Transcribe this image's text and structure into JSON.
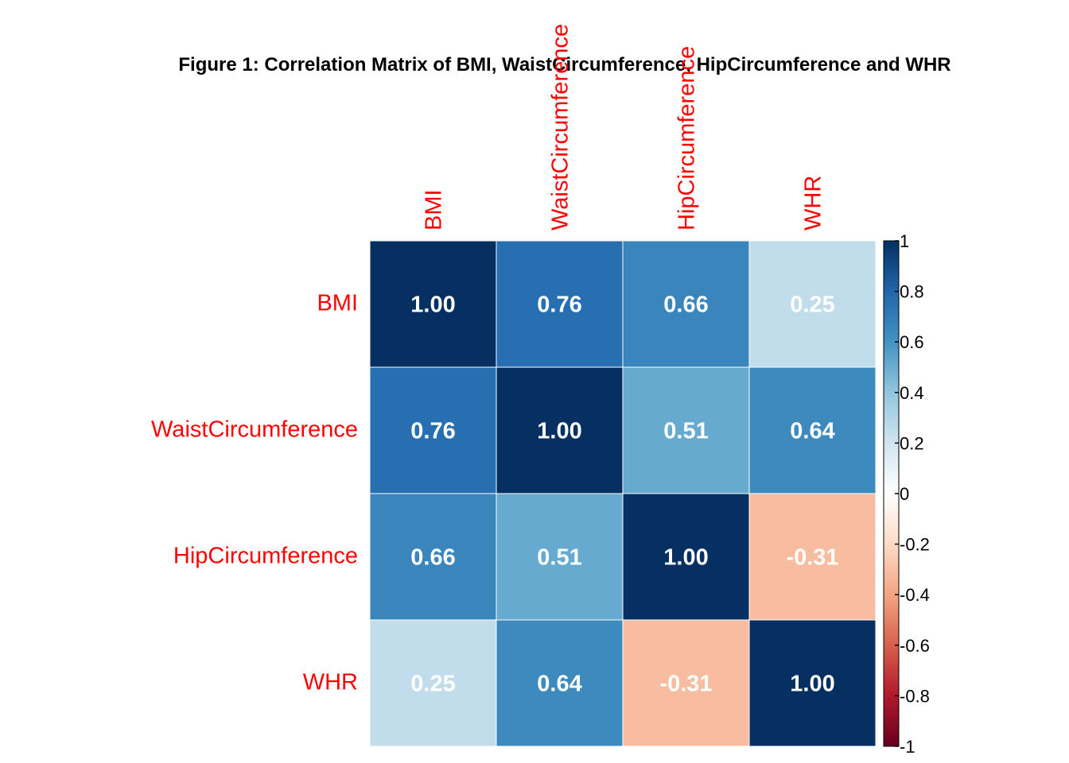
{
  "chart_data": {
    "type": "heatmap",
    "title": "Figure 1: Correlation Matrix of BMI, WaistCircumference, HipCircumference and WHR",
    "row_labels": [
      "BMI",
      "WaistCircumference",
      "HipCircumference",
      "WHR"
    ],
    "col_labels": [
      "BMI",
      "WaistCircumference",
      "HipCircumference",
      "WHR"
    ],
    "values": [
      [
        1.0,
        0.76,
        0.66,
        0.25
      ],
      [
        0.76,
        1.0,
        0.51,
        0.64
      ],
      [
        0.66,
        0.51,
        1.0,
        -0.31
      ],
      [
        0.25,
        0.64,
        -0.31,
        1.0
      ]
    ],
    "value_labels": [
      [
        "1.00",
        "0.76",
        "0.66",
        "0.25"
      ],
      [
        "0.76",
        "1.00",
        "0.51",
        "0.64"
      ],
      [
        "0.66",
        "0.51",
        "1.00",
        "-0.31"
      ],
      [
        "0.25",
        "0.64",
        "-0.31",
        "1.00"
      ]
    ],
    "colorbar": {
      "range": [
        -1,
        1
      ],
      "ticks": [
        1,
        0.8,
        0.6,
        0.4,
        0.2,
        0,
        -0.2,
        -0.4,
        -0.6,
        -0.8,
        -1
      ],
      "tick_labels": [
        "1",
        "0.8",
        "0.6",
        "0.4",
        "0.2",
        "0",
        "-0.2",
        "-0.4",
        "-0.6",
        "-0.8",
        "-1"
      ],
      "palette": [
        "#67001F",
        "#B2182B",
        "#D6604D",
        "#F4A582",
        "#FDDBC7",
        "#FFFFFF",
        "#D1E5F0",
        "#92C5DE",
        "#4393C3",
        "#2166AC",
        "#053061"
      ]
    },
    "label_color": "#FF0000",
    "value_text_color": "#FFFFFF"
  }
}
